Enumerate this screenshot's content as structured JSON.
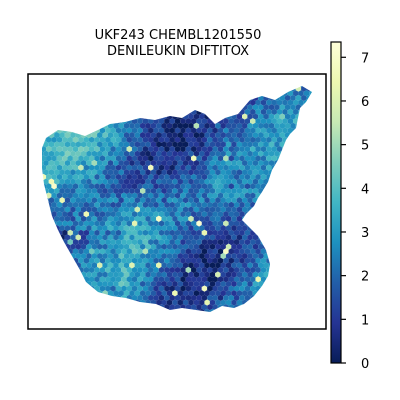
{
  "chart_data": {
    "type": "heatmap",
    "subtype": "spatial-hexbin",
    "title_lines": [
      "UKF243 CHEMBL1201550",
      "DENILEUKIN DIFTITOX"
    ],
    "colormap": "YlGnBu",
    "colorbar": {
      "vmin": 0,
      "vmax": 7.35,
      "ticks": [
        0,
        1,
        2,
        3,
        4,
        5,
        6,
        7
      ],
      "tick_labels": [
        "0",
        "1",
        "2",
        "3",
        "4",
        "5",
        "6",
        "7"
      ],
      "stops": [
        "#081d58",
        "#253494",
        "#225ea8",
        "#1d91c0",
        "#41b6c4",
        "#7fcdbb",
        "#c7e9b4",
        "#edf8b1",
        "#ffffd9"
      ]
    },
    "axes_visible": false,
    "typical_value_range": [
      0.5,
      4.0
    ],
    "max_observed": 7.3
  }
}
